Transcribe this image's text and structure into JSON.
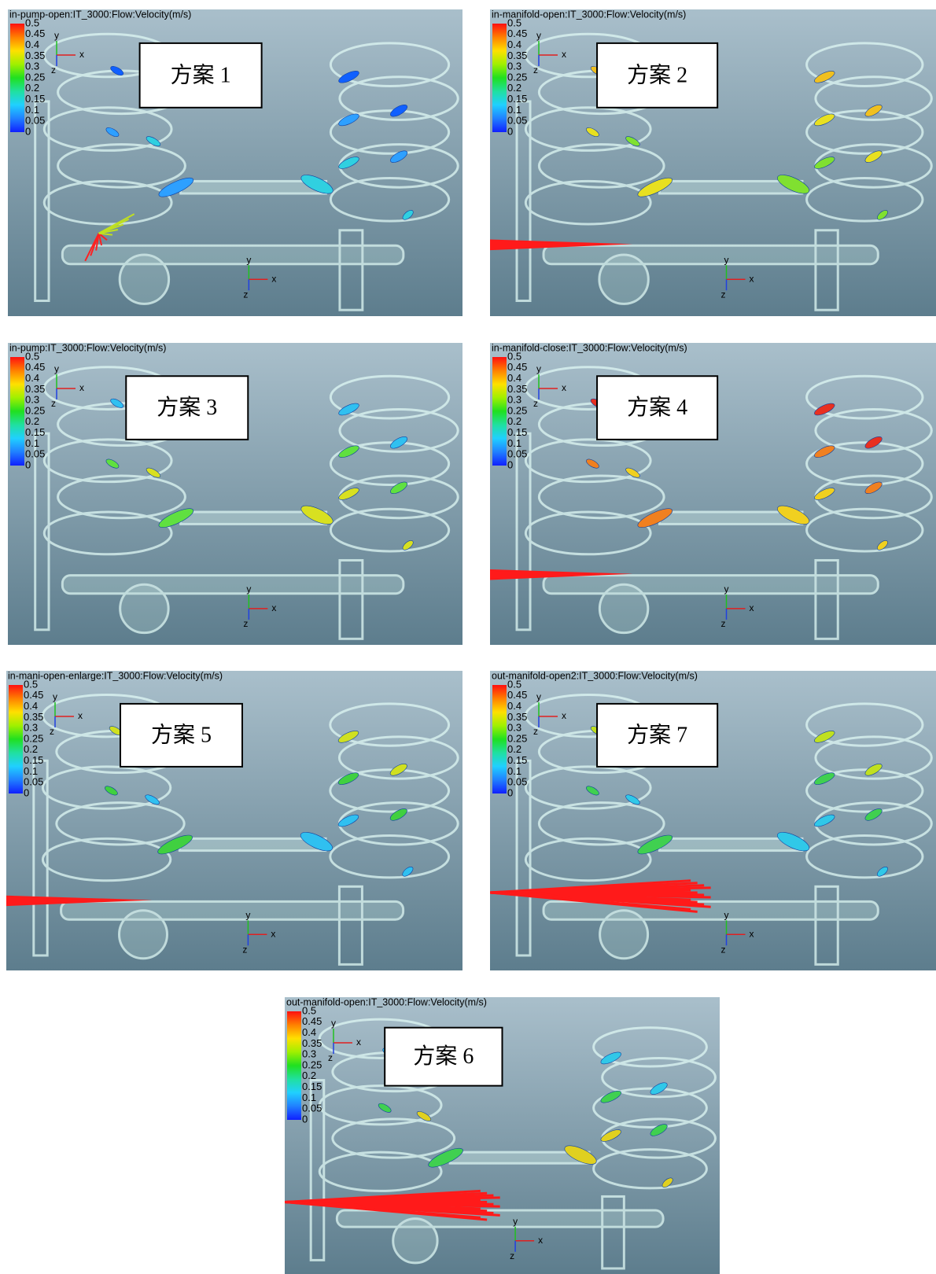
{
  "colorbar_labels": [
    "0.5",
    "0.45",
    "0.4",
    "0.35",
    "0.3",
    "0.25",
    "0.2",
    "0.15",
    "0.1",
    "0.05",
    "0"
  ],
  "axis_labels": {
    "x": "x",
    "y": "y",
    "z": "z"
  },
  "panels": [
    {
      "header": "in-pump-open:IT_3000:Flow:Velocity(m/s)",
      "label": "方案 1"
    },
    {
      "header": "in-manifold-open:IT_3000:Flow:Velocity(m/s)",
      "label": "方案 2"
    },
    {
      "header": "in-pump:IT_3000:Flow:Velocity(m/s)",
      "label": "方案 3"
    },
    {
      "header": "in-manifold-close:IT_3000:Flow:Velocity(m/s)",
      "label": "方案 4"
    },
    {
      "header": "in-mani-open-enlarge:IT_3000:Flow:Velocity(m/s)",
      "label": "方案 5"
    },
    {
      "header": "out-manifold-open2:IT_3000:Flow:Velocity(m/s)",
      "label": "方案 7"
    },
    {
      "header": "out-manifold-open:IT_3000:Flow:Velocity(m/s)",
      "label": "方案 6"
    }
  ]
}
